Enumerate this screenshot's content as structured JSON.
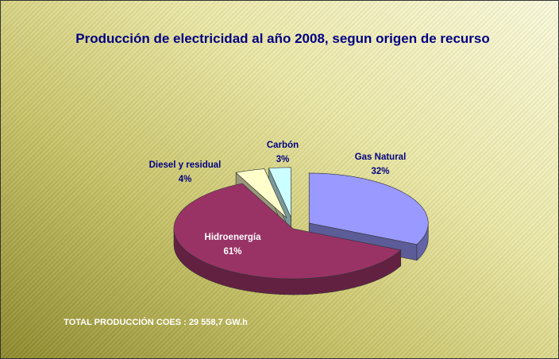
{
  "chart_data": {
    "type": "pie",
    "title": "Producción de electricidad al año 2008, segun origen de recurso",
    "categories": [
      "Gas Natural",
      "Hidroenergía",
      "Diesel y residual",
      "Carbón"
    ],
    "values": [
      32,
      61,
      4,
      3
    ],
    "value_labels": [
      "32%",
      "61%",
      "4%",
      "3%"
    ],
    "colors": [
      "#9999ff",
      "#993366",
      "#ffffcc",
      "#ccffff"
    ],
    "annotation": "TOTAL PRODUCCIÓN COES : 29 558,7 GW.h"
  }
}
